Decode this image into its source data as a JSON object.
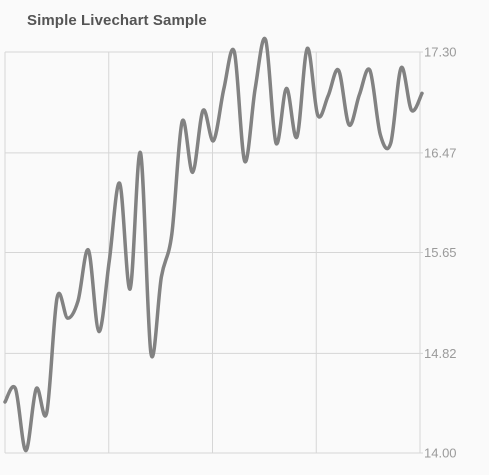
{
  "title": "Simple Livechart Sample",
  "chart_data": {
    "type": "line",
    "title": "Simple Livechart Sample",
    "xlabel": "",
    "ylabel": "",
    "ylim": [
      14.0,
      17.3
    ],
    "y_ticks": [
      "14.00",
      "14.82",
      "15.65",
      "16.47",
      "17.30"
    ],
    "grid": true,
    "legend": "none",
    "line_color": "#828282",
    "grid_color": "#d6d6d6",
    "series": [
      {
        "x": [
          0,
          1,
          2,
          3,
          4,
          5,
          6,
          7,
          8,
          9,
          10,
          11,
          12,
          13,
          14,
          15,
          16,
          17,
          18,
          19,
          20,
          21,
          22,
          23,
          24,
          25,
          26,
          27,
          28,
          29,
          30,
          31,
          32,
          33,
          34,
          35,
          36,
          37,
          38,
          39,
          40
        ],
        "values": [
          14.42,
          14.53,
          14.02,
          14.53,
          14.33,
          15.28,
          15.11,
          15.25,
          15.67,
          15.0,
          15.58,
          16.22,
          15.35,
          16.47,
          14.82,
          15.45,
          15.8,
          16.73,
          16.31,
          16.82,
          16.57,
          17.0,
          17.3,
          16.4,
          17.0,
          17.4,
          16.55,
          17.0,
          16.6,
          17.33,
          16.78,
          16.94,
          17.15,
          16.7,
          16.95,
          17.15,
          16.62,
          16.55,
          17.17,
          16.82,
          16.96
        ]
      }
    ]
  }
}
